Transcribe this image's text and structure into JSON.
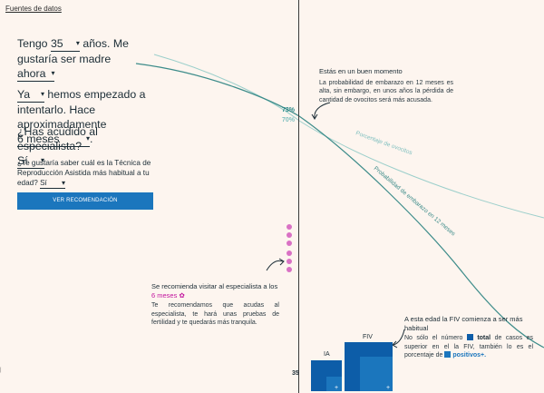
{
  "header": {
    "sources_link": "Fuentes de datos"
  },
  "form": {
    "age_prefix": "Tengo",
    "age_value": "35",
    "age_suffix": "años. Me gustaría ser madre",
    "when_value": "ahora",
    "status_value": "Ya",
    "status_text": "hemos empezado a intentarlo. Hace aproximadamente",
    "duration_value": "6 meses",
    "specialist_question": "¿Has acudido al especialista?",
    "specialist_value": "Sí",
    "technique_question": "¿Te gustaría saber cuál es la Técnica de Reproducción Asistida más habitual a tu edad?",
    "technique_value": "Sí",
    "button_label": "VER RECOMENDACIÓN"
  },
  "chart": {
    "label_73": "73%",
    "label_70": "70%",
    "curve_ovocitos": "Porcentaje de ovocitos",
    "curve_embarazo": "Probabilidad de embarazo en 12 meses",
    "age_marker": "35",
    "colors": {
      "teal": "#3d8c8a",
      "light_teal": "#9ccfcb",
      "blue_dark": "#0d5da8",
      "blue_light": "#1b76bd",
      "pink": "#d971c4"
    }
  },
  "note_good": {
    "title": "Estás en un buen momento",
    "body": "La probabilidad de embarazo en 12 meses es alta, sin embargo, en unos años la pérdida de cantidad de ovocitos será más acusada."
  },
  "note_specialist": {
    "title": "Se recomienda visitar al especialista a los",
    "months": "6 meses",
    "body": "Te recomendamos que acudas al especialista, te hará unas pruebas de fertilidad y te quedarás más tranquila."
  },
  "note_fiv": {
    "title": "A esta edad la FIV comienza a ser más habitual",
    "body_1": "No sólo el número",
    "total": "total",
    "body_2": "de casos es superior en el la FIV, también lo es el porcentaje de",
    "positivos": "positivos+."
  },
  "bars": {
    "ia_label": "IA",
    "fiv_label": "FIV",
    "plus": "+"
  }
}
